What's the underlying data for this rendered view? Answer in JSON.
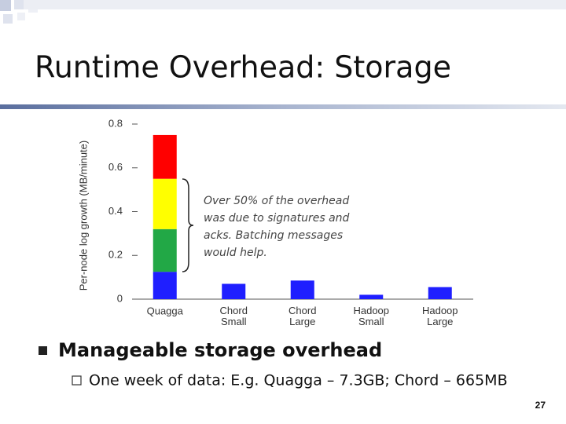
{
  "slide": {
    "title": "Runtime Overhead: Storage",
    "bullets": [
      {
        "text": "Manageable storage overhead",
        "sub": [
          "One week of data: E.g. Quagga – 7.3GB; Chord – 665MB"
        ]
      }
    ],
    "page_number": "27"
  },
  "chart_data": {
    "type": "bar",
    "stacked": true,
    "y_label": "Per-node log growth (MB/minute)",
    "categories": [
      "Quagga",
      "Chord Small",
      "Chord Large",
      "Hadoop Small",
      "Hadoop Large"
    ],
    "series": [
      {
        "color": "#1f1fff",
        "values": [
          0.125,
          0.07,
          0.085,
          0.02,
          0.055
        ]
      },
      {
        "color": "#22a846",
        "values": [
          0.195,
          null,
          null,
          null,
          null
        ]
      },
      {
        "color": "#ffff00",
        "values": [
          0.23,
          null,
          null,
          null,
          null
        ]
      },
      {
        "color": "#ff0000",
        "values": [
          0.2,
          null,
          null,
          null,
          null
        ]
      }
    ],
    "ylim": [
      0,
      0.8
    ],
    "yticks": [
      0,
      0.2,
      0.4,
      0.6,
      0.8
    ],
    "annotation": [
      "Over 50% of the overhead",
      "was due to signatures and",
      "acks. Batching messages",
      "would help."
    ]
  }
}
